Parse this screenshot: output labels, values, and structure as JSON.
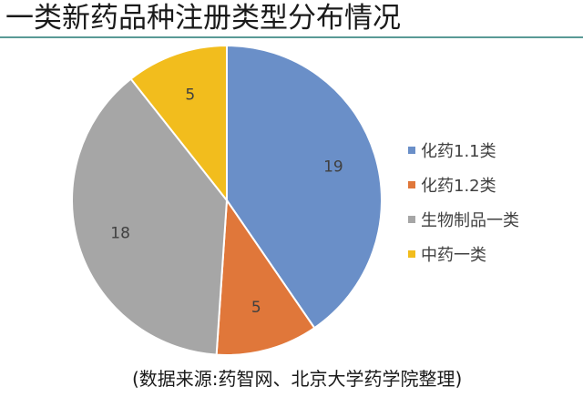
{
  "title": "一类新药品种注册类型分布情况",
  "source_note": "(数据来源:药智网、北京大学药学院整理)",
  "chart_data": {
    "type": "pie",
    "title": "一类新药品种注册类型分布情况",
    "slices": [
      {
        "name": "化药1.1类",
        "value": 19,
        "color": "#6a8fc8"
      },
      {
        "name": "化药1.2类",
        "value": 5,
        "color": "#e0773a"
      },
      {
        "name": "生物制品一类",
        "value": 18,
        "color": "#a6a6a6"
      },
      {
        "name": "中药一类",
        "value": 5,
        "color": "#f2bd1d"
      }
    ],
    "start_angle_deg": 0,
    "direction": "clockwise",
    "legend_position": "right"
  }
}
